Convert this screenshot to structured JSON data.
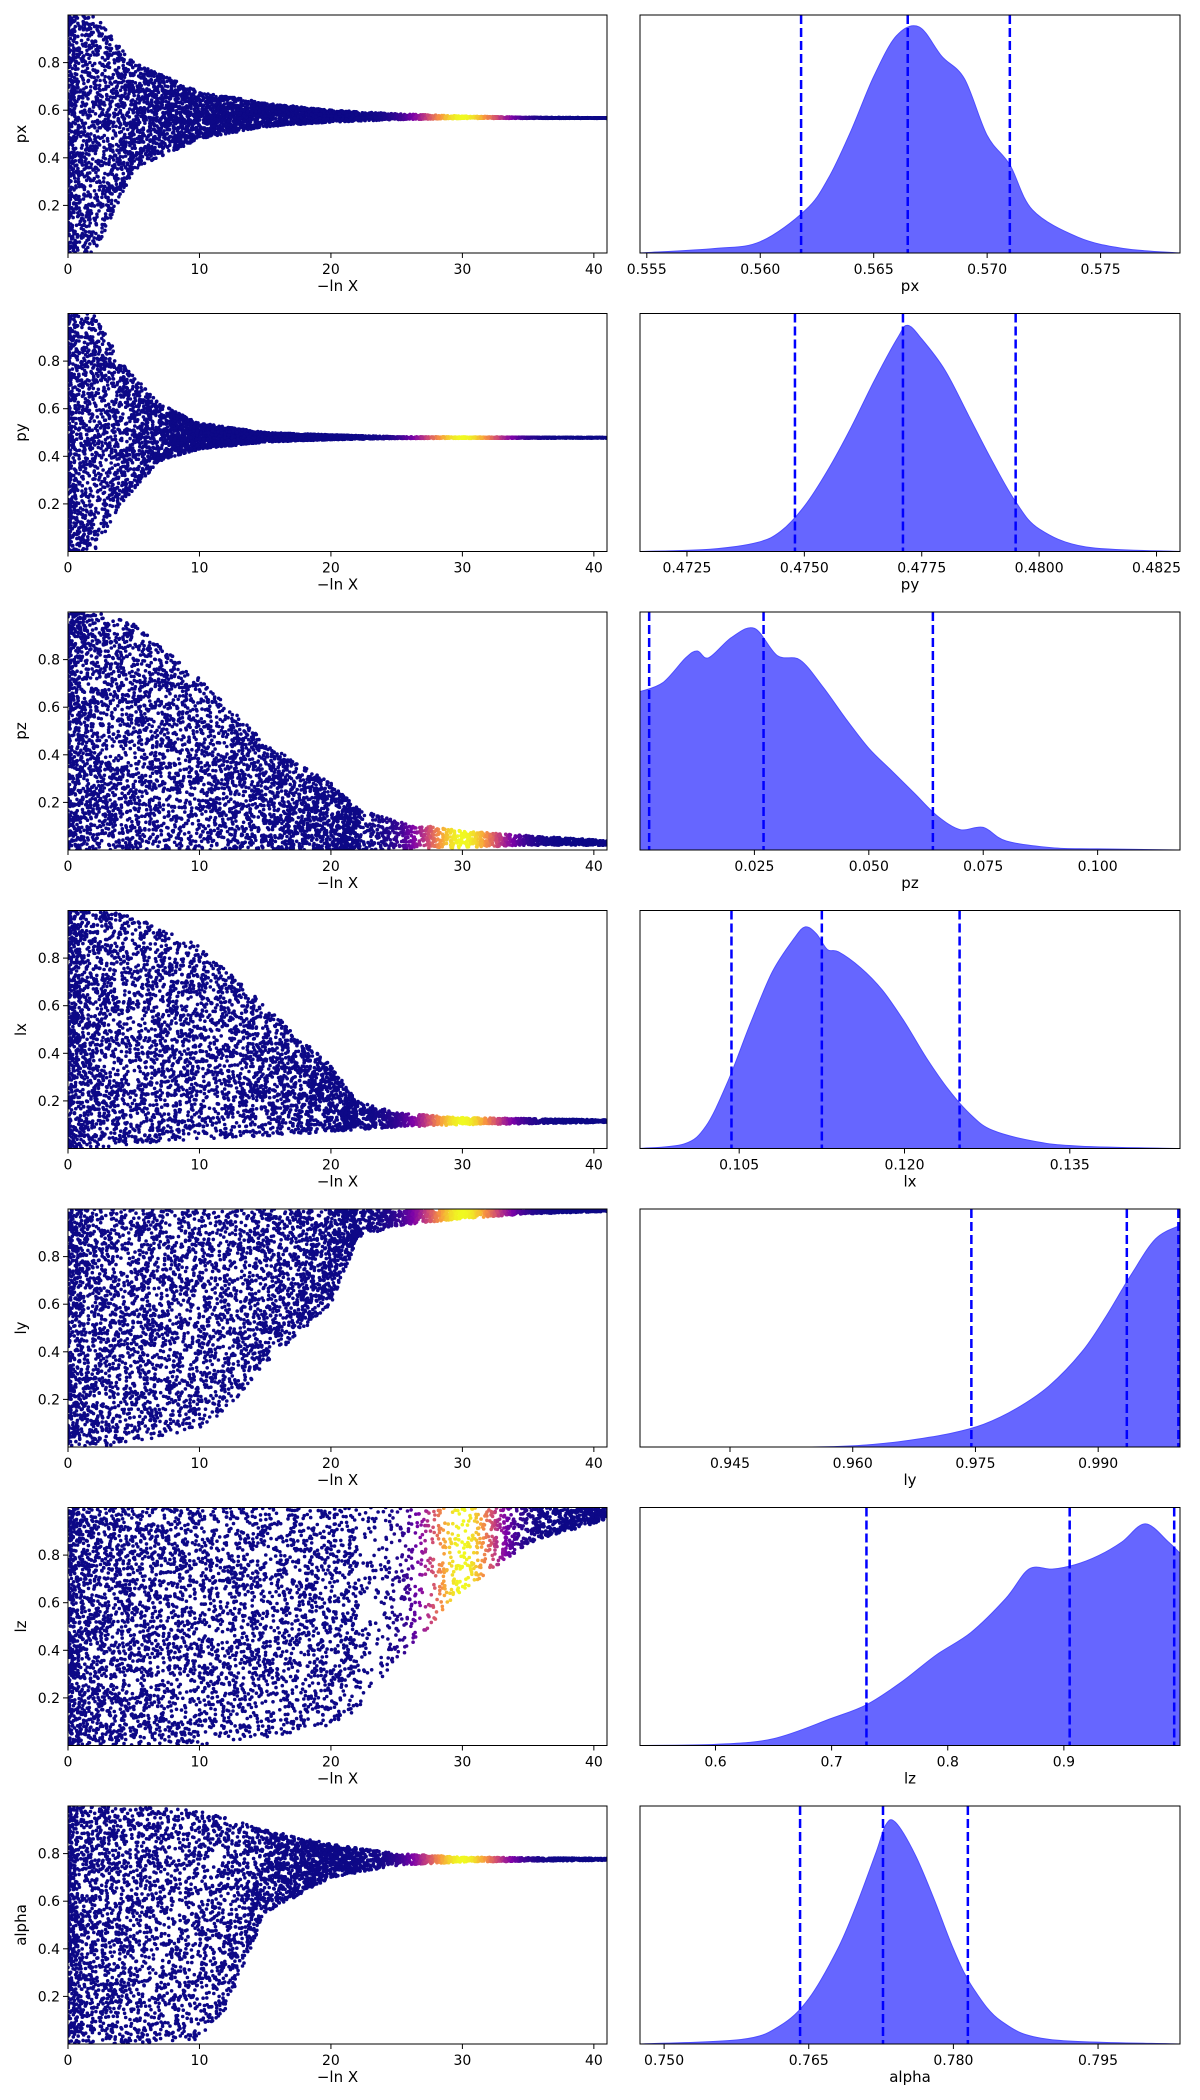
{
  "colors": {
    "scatter_low": "#0d0887",
    "scatter_mid1": "#7e03a8",
    "scatter_mid2": "#cc4778",
    "scatter_mid3": "#f89540",
    "scatter_high": "#f0f921",
    "posterior_fill": "#6666ff",
    "posterior_edge": "#4d4dff",
    "quantile_line": "#0000ff",
    "axis": "#000000"
  },
  "chart_data": [
    {
      "type": "scatter",
      "parameter": "px",
      "xlabel": "−ln X",
      "ylabel": "px",
      "xlim": [
        0,
        41
      ],
      "ylim": [
        0,
        1
      ],
      "xticks": [
        0,
        10,
        20,
        30,
        40
      ],
      "yticks": [
        0.2,
        0.4,
        0.6,
        0.8
      ],
      "ytick_labels": [
        "0.2",
        "0.4",
        "0.6",
        "0.8"
      ],
      "envelope": {
        "x": [
          0,
          2,
          5,
          10,
          15,
          20,
          25,
          30,
          35,
          41
        ],
        "lower": [
          0.0,
          0.0,
          0.35,
          0.48,
          0.53,
          0.55,
          0.56,
          0.565,
          0.566,
          0.566
        ],
        "upper": [
          1.0,
          1.0,
          0.8,
          0.68,
          0.63,
          0.6,
          0.585,
          0.575,
          0.57,
          0.568
        ]
      },
      "color_peak": 30,
      "color_width": 3.2
    },
    {
      "type": "area",
      "parameter": "px",
      "xlabel": "px",
      "xlim": [
        0.5547,
        0.5785
      ],
      "xticks": [
        0.555,
        0.56,
        0.565,
        0.57,
        0.575
      ],
      "xtick_labels": [
        "0.555",
        "0.560",
        "0.565",
        "0.570",
        "0.575"
      ],
      "x": [
        0.5547,
        0.558,
        0.56,
        0.562,
        0.563,
        0.564,
        0.565,
        0.566,
        0.567,
        0.568,
        0.569,
        0.57,
        0.571,
        0.572,
        0.574,
        0.576,
        0.5785
      ],
      "y": [
        0.0,
        0.02,
        0.05,
        0.19,
        0.33,
        0.54,
        0.78,
        0.96,
        1.0,
        0.87,
        0.77,
        0.52,
        0.39,
        0.19,
        0.07,
        0.02,
        0.0
      ],
      "quantiles": [
        0.5618,
        0.5665,
        0.571
      ]
    },
    {
      "type": "scatter",
      "parameter": "py",
      "xlabel": "−ln X",
      "ylabel": "py",
      "xlim": [
        0,
        41
      ],
      "ylim": [
        0,
        1
      ],
      "xticks": [
        0,
        10,
        20,
        30,
        40
      ],
      "yticks": [
        0.2,
        0.4,
        0.6,
        0.8
      ],
      "ytick_labels": [
        "0.2",
        "0.4",
        "0.6",
        "0.8"
      ],
      "envelope": {
        "x": [
          0,
          2,
          4,
          7,
          10,
          15,
          20,
          25,
          41
        ],
        "lower": [
          0.0,
          0.0,
          0.2,
          0.38,
          0.43,
          0.46,
          0.47,
          0.475,
          0.477
        ],
        "upper": [
          1.0,
          1.0,
          0.8,
          0.62,
          0.54,
          0.5,
          0.49,
          0.482,
          0.479
        ]
      },
      "color_peak": 30,
      "color_width": 3.2
    },
    {
      "type": "area",
      "parameter": "py",
      "xlabel": "py",
      "xlim": [
        0.4715,
        0.483
      ],
      "xticks": [
        0.4725,
        0.475,
        0.4775,
        0.48,
        0.4825
      ],
      "xtick_labels": [
        "0.4725",
        "0.4750",
        "0.4775",
        "0.4800",
        "0.4825"
      ],
      "x": [
        0.4715,
        0.473,
        0.474,
        0.4745,
        0.475,
        0.4755,
        0.476,
        0.4765,
        0.477,
        0.4772,
        0.4775,
        0.478,
        0.4785,
        0.479,
        0.4795,
        0.48,
        0.481,
        0.483
      ],
      "y": [
        0.0,
        0.01,
        0.04,
        0.09,
        0.2,
        0.36,
        0.55,
        0.76,
        0.95,
        1.0,
        0.94,
        0.8,
        0.6,
        0.4,
        0.22,
        0.1,
        0.02,
        0.0
      ],
      "quantiles": [
        0.4748,
        0.4771,
        0.4795
      ]
    },
    {
      "type": "scatter",
      "parameter": "pz",
      "xlabel": "−ln X",
      "ylabel": "pz",
      "xlim": [
        0,
        41
      ],
      "ylim": [
        0,
        1
      ],
      "xticks": [
        0,
        10,
        20,
        30,
        40
      ],
      "yticks": [
        0.2,
        0.4,
        0.6,
        0.8
      ],
      "ytick_labels": [
        "0.2",
        "0.4",
        "0.6",
        "0.8"
      ],
      "envelope": {
        "x": [
          0,
          2,
          5,
          10,
          15,
          20,
          22,
          25,
          30,
          35,
          41
        ],
        "lower": [
          0.0,
          0.0,
          0.0,
          0.0,
          0.0,
          0.0,
          0.0,
          0.0,
          0.01,
          0.02,
          0.02
        ],
        "upper": [
          1.0,
          1.0,
          0.95,
          0.72,
          0.45,
          0.28,
          0.18,
          0.12,
          0.08,
          0.06,
          0.04
        ]
      },
      "color_peak": 30,
      "color_width": 3.2
    },
    {
      "type": "area",
      "parameter": "pz",
      "xlabel": "pz",
      "xlim": [
        0.0,
        0.118
      ],
      "xticks": [
        0.025,
        0.05,
        0.075,
        0.1
      ],
      "xtick_labels": [
        "0.025",
        "0.050",
        "0.075",
        "0.100"
      ],
      "x": [
        0.0,
        0.005,
        0.01,
        0.0125,
        0.015,
        0.02,
        0.025,
        0.03,
        0.035,
        0.04,
        0.045,
        0.05,
        0.055,
        0.06,
        0.065,
        0.07,
        0.075,
        0.08,
        0.09,
        0.1,
        0.118
      ],
      "y": [
        0.7,
        0.74,
        0.85,
        0.88,
        0.85,
        0.94,
        0.98,
        0.86,
        0.84,
        0.72,
        0.58,
        0.45,
        0.35,
        0.25,
        0.15,
        0.09,
        0.1,
        0.04,
        0.01,
        0.005,
        0.0
      ],
      "quantiles": [
        0.002,
        0.027,
        0.064
      ]
    },
    {
      "type": "scatter",
      "parameter": "lx",
      "xlabel": "−ln X",
      "ylabel": "lx",
      "xlim": [
        0,
        41
      ],
      "ylim": [
        0,
        1
      ],
      "xticks": [
        0,
        10,
        20,
        30,
        40
      ],
      "yticks": [
        0.2,
        0.4,
        0.6,
        0.8
      ],
      "ytick_labels": [
        "0.2",
        "0.4",
        "0.6",
        "0.8"
      ],
      "envelope": {
        "x": [
          0,
          2,
          5,
          10,
          15,
          20,
          22,
          25,
          30,
          41
        ],
        "lower": [
          0.0,
          0.0,
          0.02,
          0.04,
          0.05,
          0.07,
          0.08,
          0.09,
          0.1,
          0.11
        ],
        "upper": [
          1.0,
          1.0,
          0.98,
          0.85,
          0.6,
          0.35,
          0.2,
          0.15,
          0.13,
          0.12
        ]
      },
      "color_peak": 30,
      "color_width": 3.2
    },
    {
      "type": "area",
      "parameter": "lx",
      "xlabel": "lx",
      "xlim": [
        0.096,
        0.145
      ],
      "xticks": [
        0.105,
        0.12,
        0.135
      ],
      "xtick_labels": [
        "0.105",
        "0.120",
        "0.135"
      ],
      "x": [
        0.096,
        0.1,
        0.102,
        0.104,
        0.106,
        0.108,
        0.11,
        0.111,
        0.112,
        0.113,
        0.114,
        0.116,
        0.118,
        0.12,
        0.122,
        0.124,
        0.126,
        0.128,
        0.132,
        0.136,
        0.145
      ],
      "y": [
        0.0,
        0.02,
        0.1,
        0.3,
        0.55,
        0.78,
        0.93,
        0.98,
        0.95,
        0.88,
        0.87,
        0.8,
        0.7,
        0.56,
        0.4,
        0.26,
        0.15,
        0.08,
        0.03,
        0.01,
        0.0
      ],
      "quantiles": [
        0.1043,
        0.1125,
        0.125
      ]
    },
    {
      "type": "scatter",
      "parameter": "ly",
      "xlabel": "−ln X",
      "ylabel": "ly",
      "xlim": [
        0,
        41
      ],
      "ylim": [
        0,
        1
      ],
      "xticks": [
        0,
        10,
        20,
        30,
        40
      ],
      "yticks": [
        0.2,
        0.4,
        0.6,
        0.8
      ],
      "ytick_labels": [
        "0.2",
        "0.4",
        "0.6",
        "0.8"
      ],
      "envelope": {
        "x": [
          0,
          2,
          5,
          10,
          12,
          15,
          20,
          21,
          22,
          25,
          30,
          35,
          41
        ],
        "lower": [
          0.0,
          0.0,
          0.02,
          0.08,
          0.15,
          0.35,
          0.6,
          0.72,
          0.88,
          0.93,
          0.96,
          0.98,
          0.99
        ],
        "upper": [
          1.0,
          1.0,
          1.0,
          1.0,
          1.0,
          1.0,
          1.0,
          1.0,
          1.0,
          1.0,
          1.0,
          1.0,
          1.0
        ]
      },
      "color_peak": 30,
      "color_width": 3.2
    },
    {
      "type": "area",
      "parameter": "ly",
      "xlabel": "ly",
      "xlim": [
        0.934,
        1.0
      ],
      "xticks": [
        0.945,
        0.96,
        0.975,
        0.99
      ],
      "xtick_labels": [
        "0.945",
        "0.960",
        "0.975",
        "0.990"
      ],
      "x": [
        0.934,
        0.955,
        0.962,
        0.967,
        0.972,
        0.976,
        0.98,
        0.984,
        0.988,
        0.991,
        0.994,
        0.997,
        1.0
      ],
      "y": [
        0.0,
        0.0,
        0.01,
        0.03,
        0.06,
        0.1,
        0.17,
        0.27,
        0.42,
        0.58,
        0.76,
        0.92,
        0.98
      ],
      "quantiles": [
        0.9745,
        0.9935,
        0.9998
      ]
    },
    {
      "type": "scatter",
      "parameter": "lz",
      "xlabel": "−ln X",
      "ylabel": "lz",
      "xlim": [
        0,
        41
      ],
      "ylim": [
        0,
        1
      ],
      "xticks": [
        0,
        10,
        20,
        30,
        40
      ],
      "yticks": [
        0.2,
        0.4,
        0.6,
        0.8
      ],
      "ytick_labels": [
        "0.2",
        "0.4",
        "0.6",
        "0.8"
      ],
      "envelope": {
        "x": [
          0,
          2,
          5,
          10,
          15,
          20,
          22,
          25,
          30,
          35,
          41
        ],
        "lower": [
          0.0,
          0.0,
          0.0,
          0.0,
          0.03,
          0.08,
          0.15,
          0.35,
          0.65,
          0.85,
          0.95
        ],
        "upper": [
          1.0,
          1.0,
          1.0,
          1.0,
          1.0,
          1.0,
          1.0,
          1.0,
          1.0,
          1.0,
          1.0
        ]
      },
      "color_peak": 30,
      "color_width": 2.8
    },
    {
      "type": "area",
      "parameter": "lz",
      "xlabel": "lz",
      "xlim": [
        0.535,
        1.0
      ],
      "xticks": [
        0.6,
        0.7,
        0.8,
        0.9
      ],
      "xtick_labels": [
        "0.6",
        "0.7",
        "0.8",
        "0.9"
      ],
      "x": [
        0.535,
        0.6,
        0.65,
        0.7,
        0.73,
        0.76,
        0.79,
        0.82,
        0.85,
        0.87,
        0.89,
        0.91,
        0.93,
        0.95,
        0.97,
        0.99,
        1.0
      ],
      "y": [
        0.0,
        0.005,
        0.03,
        0.12,
        0.18,
        0.28,
        0.4,
        0.5,
        0.65,
        0.78,
        0.78,
        0.8,
        0.84,
        0.9,
        0.98,
        0.9,
        0.85
      ],
      "quantiles": [
        0.73,
        0.905,
        0.995
      ]
    },
    {
      "type": "scatter",
      "parameter": "alpha",
      "xlabel": "−ln X",
      "ylabel": "alpha",
      "xlim": [
        0,
        41
      ],
      "ylim": [
        0,
        1
      ],
      "xticks": [
        0,
        10,
        20,
        30,
        40
      ],
      "yticks": [
        0.2,
        0.4,
        0.6,
        0.8
      ],
      "ytick_labels": [
        "0.2",
        "0.4",
        "0.6",
        "0.8"
      ],
      "envelope": {
        "x": [
          0,
          2,
          5,
          10,
          12,
          15,
          20,
          25,
          30,
          41
        ],
        "lower": [
          0.0,
          0.0,
          0.0,
          0.02,
          0.15,
          0.55,
          0.7,
          0.75,
          0.765,
          0.772
        ],
        "upper": [
          1.0,
          1.0,
          1.0,
          0.98,
          0.95,
          0.9,
          0.84,
          0.8,
          0.785,
          0.78
        ]
      },
      "color_peak": 30,
      "color_width": 3.2
    },
    {
      "type": "area",
      "parameter": "alpha",
      "xlabel": "alpha",
      "xlim": [
        0.7475,
        0.8035
      ],
      "xticks": [
        0.75,
        0.765,
        0.78,
        0.795
      ],
      "xtick_labels": [
        "0.750",
        "0.765",
        "0.780",
        "0.795"
      ],
      "x": [
        0.7475,
        0.758,
        0.762,
        0.765,
        0.768,
        0.77,
        0.772,
        0.773,
        0.774,
        0.776,
        0.778,
        0.78,
        0.782,
        0.785,
        0.79,
        0.8035
      ],
      "y": [
        0.0,
        0.02,
        0.08,
        0.2,
        0.42,
        0.62,
        0.85,
        0.97,
        0.98,
        0.84,
        0.64,
        0.42,
        0.25,
        0.1,
        0.02,
        0.0
      ],
      "quantiles": [
        0.7641,
        0.7727,
        0.7815
      ]
    }
  ]
}
